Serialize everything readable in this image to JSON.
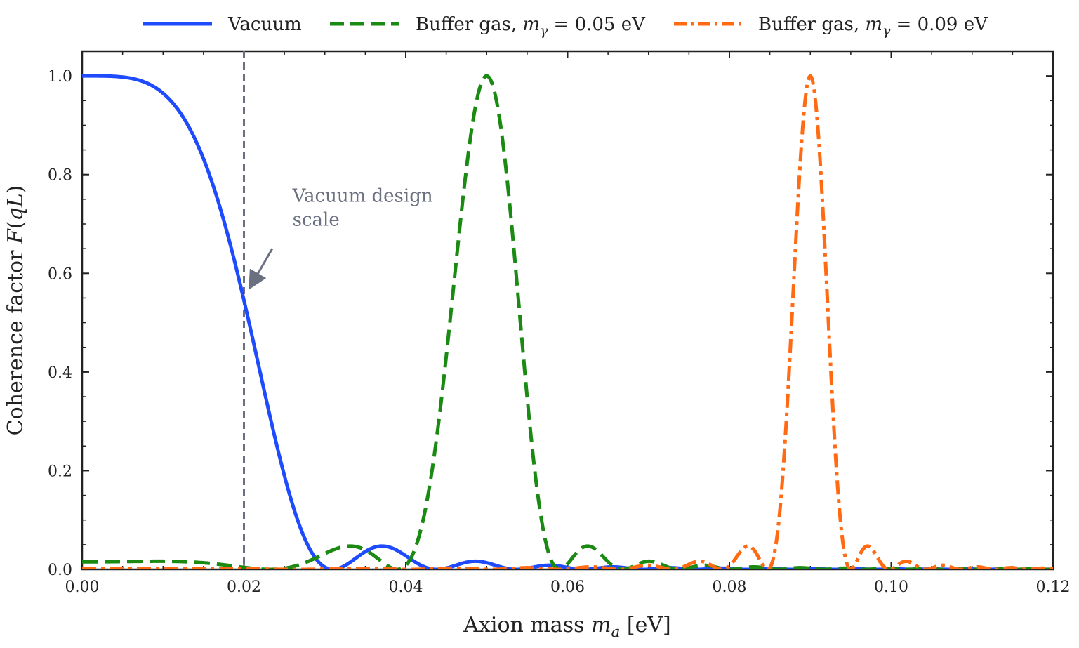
{
  "chart_data": {
    "type": "line",
    "xlabel": "Axion mass m_a [eV]",
    "ylabel": "Coherence factor F(qL)",
    "xlim": [
      0.0,
      0.12
    ],
    "ylim": [
      0.0,
      1.05
    ],
    "x_ticks": [
      0.0,
      0.02,
      0.04,
      0.06,
      0.08,
      0.1,
      0.12
    ],
    "x_tick_labels": [
      "0.00",
      "0.02",
      "0.04",
      "0.06",
      "0.08",
      "0.10",
      "0.12"
    ],
    "y_ticks": [
      0.0,
      0.2,
      0.4,
      0.6,
      0.8,
      1.0
    ],
    "y_tick_labels": [
      "0.0",
      "0.2",
      "0.4",
      "0.6",
      "0.8",
      "1.0"
    ],
    "grid": false,
    "legend_position": "top, outside plot",
    "series": [
      {
        "name": "Vacuum",
        "style": "solid",
        "color": "#1f4bff",
        "peak_mass": 0.0,
        "points": [
          [
            0.0,
            1.0
          ],
          [
            0.004,
            0.999
          ],
          [
            0.008,
            0.99
          ],
          [
            0.012,
            0.95
          ],
          [
            0.016,
            0.85
          ],
          [
            0.02,
            0.56
          ],
          [
            0.024,
            0.3
          ],
          [
            0.028,
            0.08
          ],
          [
            0.031,
            0.0
          ],
          [
            0.034,
            0.02
          ],
          [
            0.0375,
            0.047
          ],
          [
            0.041,
            0.02
          ],
          [
            0.044,
            0.0
          ],
          [
            0.0475,
            0.015
          ],
          [
            0.05,
            0.017
          ],
          [
            0.054,
            0.0
          ],
          [
            0.058,
            0.009
          ],
          [
            0.06,
            0.008
          ],
          [
            0.064,
            0.0
          ],
          [
            0.12,
            0.003
          ]
        ]
      },
      {
        "name": "Buffer gas, m_γ = 0.05 eV",
        "style": "dashed",
        "color": "#1a8a12",
        "peak_mass": 0.05,
        "points": [
          [
            0.0,
            0.015
          ],
          [
            0.012,
            0.014
          ],
          [
            0.02,
            0.005
          ],
          [
            0.028,
            0.01
          ],
          [
            0.0325,
            0.047
          ],
          [
            0.037,
            0.02
          ],
          [
            0.04,
            0.0
          ],
          [
            0.045,
            0.5
          ],
          [
            0.05,
            1.0
          ],
          [
            0.055,
            0.5
          ],
          [
            0.059,
            0.0
          ],
          [
            0.063,
            0.047
          ],
          [
            0.066,
            0.0
          ],
          [
            0.07,
            0.017
          ],
          [
            0.074,
            0.0
          ],
          [
            0.08,
            0.005
          ],
          [
            0.12,
            0.002
          ]
        ]
      },
      {
        "name": "Buffer gas, m_γ = 0.09 eV",
        "style": "dashdot",
        "color": "#ff6a13",
        "peak_mass": 0.09,
        "points": [
          [
            0.0,
            0.001
          ],
          [
            0.07,
            0.005
          ],
          [
            0.075,
            0.015
          ],
          [
            0.08,
            0.0
          ],
          [
            0.082,
            0.047
          ],
          [
            0.085,
            0.0
          ],
          [
            0.09,
            1.0
          ],
          [
            0.095,
            0.0
          ],
          [
            0.0975,
            0.047
          ],
          [
            0.1,
            0.0
          ],
          [
            0.1025,
            0.017
          ],
          [
            0.105,
            0.0
          ],
          [
            0.12,
            0.005
          ]
        ]
      }
    ],
    "annotations": [
      {
        "text_line1": "Vacuum design",
        "text_line2": "scale",
        "vline_x": 0.02,
        "arrow_target": [
          0.02,
          0.57
        ],
        "arrow_tail": [
          0.0235,
          0.65
        ],
        "text_anchor_xy": [
          0.026,
          0.745
        ]
      }
    ],
    "colors": {
      "axis": "#222222",
      "annotation": "#6b7080"
    }
  }
}
